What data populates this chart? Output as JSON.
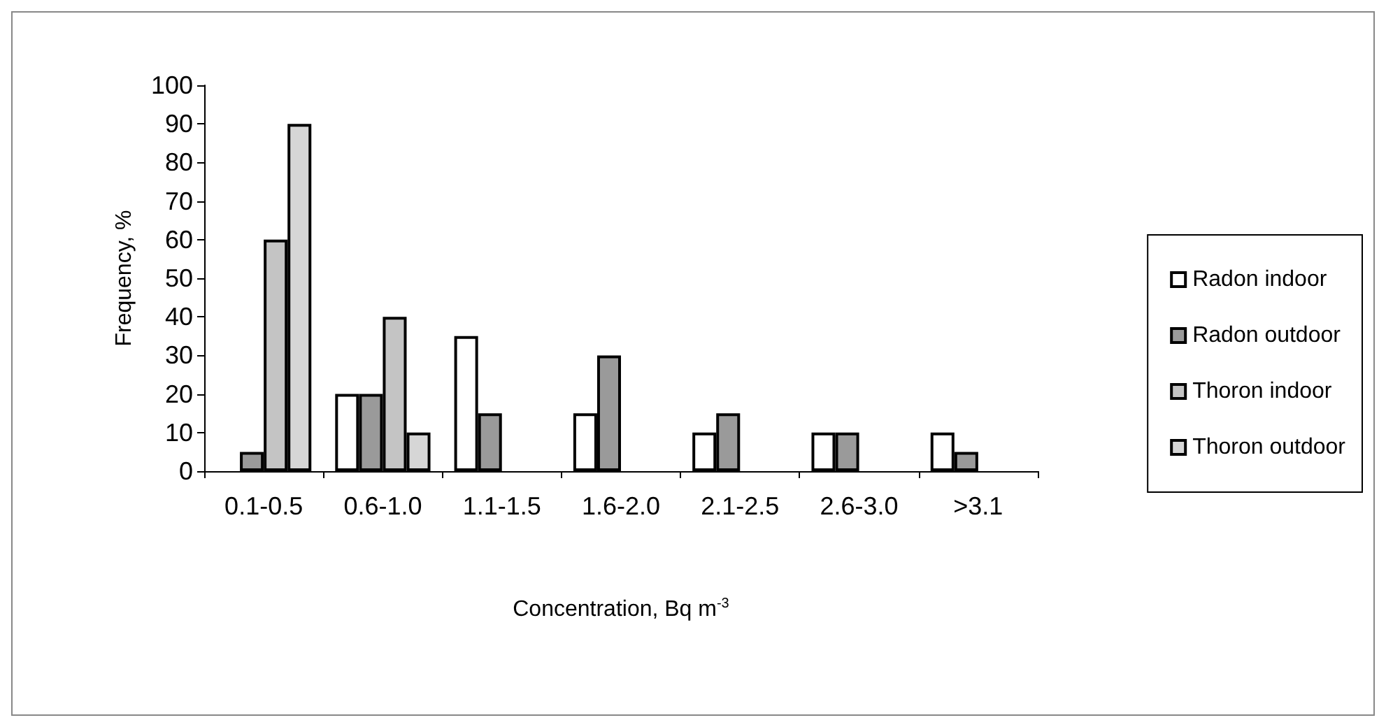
{
  "chart_data": {
    "type": "bar",
    "xlabel": "Concentration, Bq m$^{-3}$",
    "ylabel": "Frequency, %",
    "categories": [
      "0.1-0.5",
      "0.6-1.0",
      "1.1-1.5",
      "1.6-2.0",
      "2.1-2.5",
      "2.6-3.0",
      ">3.1"
    ],
    "series": [
      {
        "name": "Radon indoor",
        "color": "#ffffff",
        "values": [
          null,
          20,
          35,
          15,
          10,
          10,
          10
        ]
      },
      {
        "name": "Radon outdoor",
        "color": "#9a9a9a",
        "values": [
          5,
          20,
          15,
          30,
          15,
          10,
          5
        ]
      },
      {
        "name": "Thoron indoor",
        "color": "#c4c4c4",
        "values": [
          60,
          40,
          null,
          null,
          null,
          null,
          null
        ]
      },
      {
        "name": "Thoron outdoor",
        "color": "#d6d6d6",
        "values": [
          90,
          10,
          null,
          null,
          null,
          null,
          null
        ]
      }
    ],
    "ylim": [
      0,
      100
    ],
    "yticks": [
      0,
      10,
      20,
      30,
      40,
      50,
      60,
      70,
      80,
      90,
      100
    ],
    "grid": false,
    "legend": "right"
  }
}
